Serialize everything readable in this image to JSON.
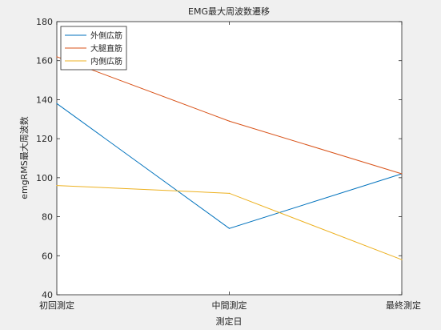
{
  "chart_data": {
    "type": "line",
    "title": "EMG最大周波数遷移",
    "xlabel": "測定日",
    "ylabel": "emgRMS最大周波数",
    "categories": [
      "初回測定",
      "中間測定",
      "最終測定"
    ],
    "ylim": [
      40,
      180
    ],
    "yticks": [
      40,
      60,
      80,
      100,
      120,
      140,
      160,
      180
    ],
    "grid": false,
    "legend_position": "top-left",
    "series": [
      {
        "name": "外側広筋",
        "values": [
          138,
          74,
          102
        ],
        "color": "#0072bd"
      },
      {
        "name": "大腿直筋",
        "values": [
          162,
          129,
          102
        ],
        "color": "#d95319"
      },
      {
        "name": "内側広筋",
        "values": [
          96,
          92,
          58
        ],
        "color": "#edb120"
      }
    ]
  }
}
